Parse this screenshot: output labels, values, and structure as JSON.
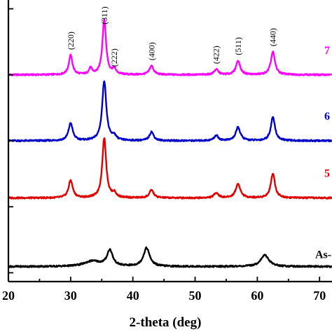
{
  "chart_data": {
    "type": "line",
    "title": "",
    "xlabel": "2-theta (deg)",
    "ylabel": "",
    "xlim": [
      20,
      72
    ],
    "xticks": [
      20,
      30,
      40,
      50,
      60,
      70
    ],
    "x_tick_labels": [
      "20",
      "30",
      "40",
      "50",
      "60",
      "70"
    ],
    "grid": false,
    "peak_labels": [
      {
        "text": "(220)",
        "x": 30.0
      },
      {
        "text": "(311)",
        "x": 35.4
      },
      {
        "text": "(222)",
        "x": 37.0
      },
      {
        "text": "(400)",
        "x": 43.0
      },
      {
        "text": "(422)",
        "x": 53.4
      },
      {
        "text": "(511)",
        "x": 56.9
      },
      {
        "text": "(440)",
        "x": 62.5
      }
    ],
    "series": [
      {
        "name": "7",
        "color": "#ff00ff",
        "baseline": 0.75,
        "peaks": [
          {
            "x": 30.0,
            "h": 0.22,
            "w": 0.35
          },
          {
            "x": 33.2,
            "h": 0.07,
            "w": 0.3
          },
          {
            "x": 35.4,
            "h": 0.63,
            "w": 0.35
          },
          {
            "x": 37.0,
            "h": 0.06,
            "w": 0.35
          },
          {
            "x": 43.0,
            "h": 0.1,
            "w": 0.4
          },
          {
            "x": 53.4,
            "h": 0.06,
            "w": 0.4
          },
          {
            "x": 56.9,
            "h": 0.16,
            "w": 0.4
          },
          {
            "x": 62.5,
            "h": 0.26,
            "w": 0.4
          }
        ]
      },
      {
        "name": "6",
        "color": "#0000cc",
        "baseline": 0.0,
        "peaks": [
          {
            "x": 30.0,
            "h": 0.2,
            "w": 0.4
          },
          {
            "x": 35.4,
            "h": 0.68,
            "w": 0.4
          },
          {
            "x": 37.0,
            "h": 0.05,
            "w": 0.35
          },
          {
            "x": 43.0,
            "h": 0.1,
            "w": 0.4
          },
          {
            "x": 53.4,
            "h": 0.06,
            "w": 0.4
          },
          {
            "x": 56.9,
            "h": 0.15,
            "w": 0.45
          },
          {
            "x": 62.5,
            "h": 0.27,
            "w": 0.4
          }
        ]
      },
      {
        "name": "5",
        "color": "#e00000",
        "baseline": -0.65,
        "peaks": [
          {
            "x": 30.0,
            "h": 0.2,
            "w": 0.4
          },
          {
            "x": 35.4,
            "h": 0.68,
            "w": 0.38
          },
          {
            "x": 37.0,
            "h": 0.05,
            "w": 0.35
          },
          {
            "x": 43.0,
            "h": 0.09,
            "w": 0.4
          },
          {
            "x": 53.4,
            "h": 0.06,
            "w": 0.4
          },
          {
            "x": 56.9,
            "h": 0.16,
            "w": 0.45
          },
          {
            "x": 62.5,
            "h": 0.28,
            "w": 0.4
          }
        ]
      },
      {
        "name": "As-",
        "color": "#000000",
        "baseline": -1.43,
        "peaks": [
          {
            "x": 33.5,
            "h": 0.06,
            "w": 1.6
          },
          {
            "x": 36.3,
            "h": 0.18,
            "w": 0.55
          },
          {
            "x": 42.2,
            "h": 0.21,
            "w": 0.6
          },
          {
            "x": 61.2,
            "h": 0.13,
            "w": 0.8
          }
        ]
      }
    ]
  }
}
